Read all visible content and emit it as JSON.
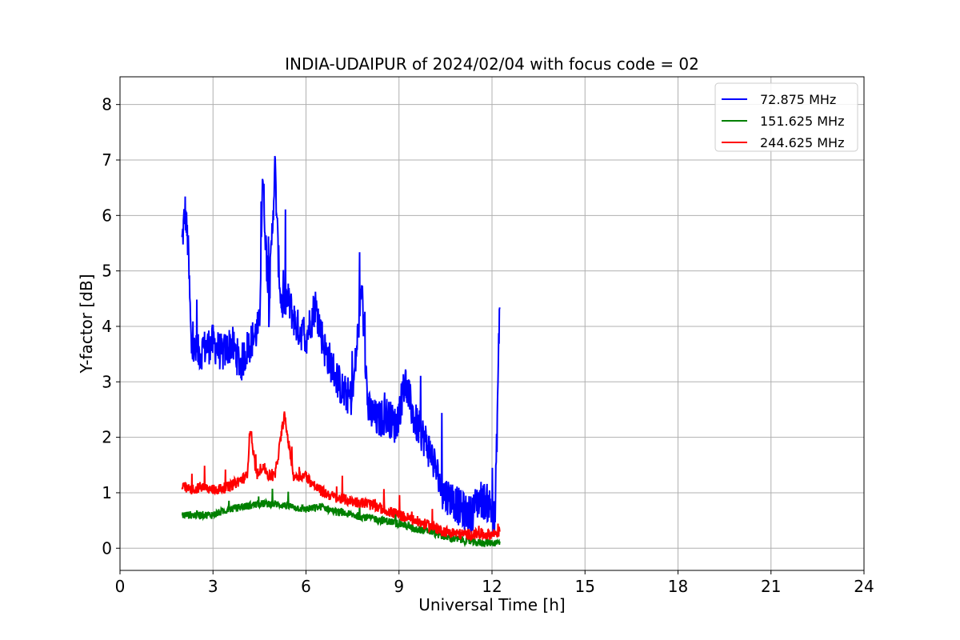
{
  "chart_data": {
    "type": "line",
    "title": "INDIA-UDAIPUR of 2024/02/04 with focus code = 02",
    "xlabel": "Universal Time [h]",
    "ylabel": "Y-factor [dB]",
    "xlim": [
      0,
      24
    ],
    "ylim": [
      -0.4,
      8.5
    ],
    "xticks": [
      0,
      3,
      6,
      9,
      12,
      15,
      18,
      21,
      24
    ],
    "xtick_labels": [
      "0",
      "3",
      "6",
      "9",
      "12",
      "15",
      "18",
      "21",
      "24"
    ],
    "yticks": [
      0,
      1,
      2,
      3,
      4,
      5,
      6,
      7,
      8
    ],
    "ytick_labels": [
      "0",
      "1",
      "2",
      "3",
      "4",
      "5",
      "6",
      "7",
      "8"
    ],
    "grid": true,
    "legend_position": "top-right",
    "series": [
      {
        "name": " 72.875 MHz",
        "color": "#0000ff",
        "x": [
          2.0,
          2.1,
          2.2,
          2.3,
          2.5,
          2.7,
          3.0,
          3.3,
          3.6,
          3.9,
          4.1,
          4.3,
          4.5,
          4.6,
          4.8,
          5.0,
          5.1,
          5.2,
          5.4,
          5.7,
          6.0,
          6.3,
          6.6,
          6.9,
          7.2,
          7.5,
          7.8,
          8.0,
          8.3,
          8.6,
          8.9,
          9.2,
          9.5,
          9.8,
          10.1,
          10.4,
          10.7,
          11.0,
          11.3,
          11.6,
          11.9,
          12.1,
          12.25
        ],
        "values": [
          5.5,
          6.1,
          5.4,
          3.6,
          3.5,
          3.6,
          3.7,
          3.5,
          3.7,
          3.3,
          3.6,
          3.8,
          4.0,
          6.8,
          4.3,
          6.9,
          5.3,
          4.4,
          4.5,
          4.0,
          3.8,
          4.4,
          3.6,
          3.2,
          2.8,
          2.7,
          4.7,
          2.5,
          2.3,
          2.4,
          2.2,
          3.0,
          2.3,
          2.0,
          1.6,
          1.0,
          0.9,
          0.7,
          0.6,
          0.9,
          0.8,
          0.5,
          4.5
        ]
      },
      {
        "name": "151.625 MHz",
        "color": "#008000",
        "x": [
          2.0,
          2.5,
          3.0,
          3.5,
          4.0,
          4.5,
          5.0,
          5.5,
          6.0,
          6.5,
          7.0,
          7.5,
          8.0,
          8.5,
          9.0,
          9.5,
          10.0,
          10.5,
          11.0,
          11.5,
          12.0,
          12.25
        ],
        "values": [
          0.6,
          0.6,
          0.6,
          0.7,
          0.75,
          0.8,
          0.8,
          0.75,
          0.7,
          0.75,
          0.65,
          0.6,
          0.55,
          0.5,
          0.45,
          0.35,
          0.3,
          0.2,
          0.15,
          0.1,
          0.1,
          0.1
        ]
      },
      {
        "name": "244.625 MHz",
        "color": "#ff0000",
        "x": [
          2.0,
          2.3,
          2.6,
          3.0,
          3.5,
          3.8,
          4.1,
          4.2,
          4.4,
          4.6,
          4.8,
          5.0,
          5.3,
          5.6,
          6.0,
          6.3,
          6.6,
          7.0,
          7.5,
          8.0,
          8.5,
          9.0,
          9.5,
          10.0,
          10.5,
          11.0,
          11.5,
          12.0,
          12.25
        ],
        "values": [
          1.1,
          1.05,
          1.1,
          1.05,
          1.1,
          1.2,
          1.3,
          2.2,
          1.3,
          1.5,
          1.3,
          1.3,
          2.4,
          1.3,
          1.3,
          1.1,
          1.0,
          0.9,
          0.85,
          0.8,
          0.7,
          0.6,
          0.5,
          0.4,
          0.3,
          0.25,
          0.25,
          0.25,
          0.3
        ]
      }
    ]
  }
}
